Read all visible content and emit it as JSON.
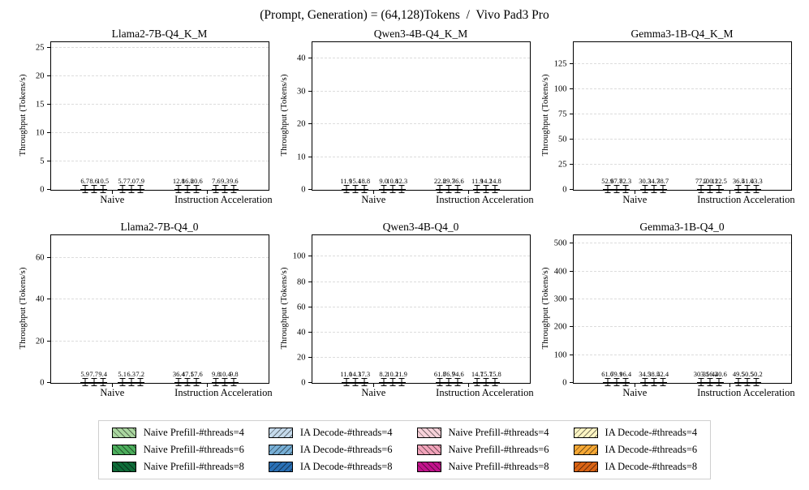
{
  "figure_title": "(Prompt, Generation) = (64,128)Tokens  /  Vivo Pad3 Pro",
  "palette": {
    "naive_prefill": [
      "#aad6a0",
      "#4cae5c",
      "#0e6b38"
    ],
    "naive_decode": [
      "#c5daec",
      "#77afd6",
      "#2a70b5"
    ],
    "ia_prefill": [
      "#f7d1d9",
      "#f2a3ba",
      "#c2138c"
    ],
    "ia_decode": [
      "#fdf5c3",
      "#f7a834",
      "#d96314"
    ]
  },
  "legend": {
    "columns": [
      {
        "palette": "naive_prefill",
        "kind": "prefill",
        "labels": [
          "Naive Prefill-#threads=4",
          "Naive Prefill-#threads=6",
          "Naive Prefill-#threads=8"
        ]
      },
      {
        "palette": "naive_decode",
        "kind": "decode",
        "labels": [
          "IA Decode-#threads=4",
          "IA Decode-#threads=6",
          "IA Decode-#threads=8"
        ]
      },
      {
        "palette": "ia_prefill",
        "kind": "prefill",
        "labels": [
          "Naive Prefill-#threads=4",
          "Naive Prefill-#threads=6",
          "Naive Prefill-#threads=8"
        ]
      },
      {
        "palette": "ia_decode",
        "kind": "decode",
        "labels": [
          "IA Decode-#threads=4",
          "IA Decode-#threads=6",
          "IA Decode-#threads=8"
        ]
      }
    ]
  },
  "chart_data": [
    {
      "type": "bar",
      "title": "Llama2-7B-Q4_K_M",
      "ylabel": "Throughput (Tokens/s)",
      "categories": [
        "Naive",
        "Instruction Acceleration"
      ],
      "yticks": [
        0,
        5,
        10,
        15,
        20,
        25
      ],
      "ymax": 26,
      "grid": true,
      "series": [
        {
          "name": "Naive Prefill",
          "category": "Naive",
          "kind": "prefill",
          "palette": "naive_prefill",
          "threads": [
            4,
            6,
            8
          ],
          "values": [
            6.7,
            8.6,
            10.5
          ]
        },
        {
          "name": "IA Decode",
          "category": "Naive",
          "kind": "decode",
          "palette": "naive_decode",
          "threads": [
            4,
            6,
            8
          ],
          "values": [
            5.7,
            7.0,
            7.9
          ]
        },
        {
          "name": "Naive Prefill",
          "category": "Instruction Acceleration",
          "kind": "prefill",
          "palette": "ia_prefill",
          "threads": [
            4,
            6,
            8
          ],
          "values": [
            12.8,
            16.8,
            20.6
          ]
        },
        {
          "name": "IA Decode",
          "category": "Instruction Acceleration",
          "kind": "decode",
          "palette": "ia_decode",
          "threads": [
            4,
            6,
            8
          ],
          "values": [
            7.6,
            9.3,
            9.6
          ]
        }
      ]
    },
    {
      "type": "bar",
      "title": "Qwen3-4B-Q4_K_M",
      "ylabel": "Throughput (Tokens/s)",
      "categories": [
        "Naive",
        "Instruction Acceleration"
      ],
      "yticks": [
        0,
        10,
        20,
        30,
        40
      ],
      "ymax": 45,
      "grid": true,
      "series": [
        {
          "name": "Naive Prefill",
          "category": "Naive",
          "kind": "prefill",
          "palette": "naive_prefill",
          "threads": [
            4,
            6,
            8
          ],
          "values": [
            11.9,
            15.4,
            18.8
          ]
        },
        {
          "name": "IA Decode",
          "category": "Naive",
          "kind": "decode",
          "palette": "naive_decode",
          "threads": [
            4,
            6,
            8
          ],
          "values": [
            9.0,
            10.8,
            12.3
          ]
        },
        {
          "name": "Naive Prefill",
          "category": "Instruction Acceleration",
          "kind": "prefill",
          "palette": "ia_prefill",
          "threads": [
            4,
            6,
            8
          ],
          "values": [
            22.8,
            29.7,
            36.6
          ]
        },
        {
          "name": "IA Decode",
          "category": "Instruction Acceleration",
          "kind": "decode",
          "palette": "ia_decode",
          "threads": [
            4,
            6,
            8
          ],
          "values": [
            11.9,
            14.2,
            14.8
          ]
        }
      ]
    },
    {
      "type": "bar",
      "title": "Gemma3-1B-Q4_K_M",
      "ylabel": "Throughput (Tokens/s)",
      "categories": [
        "Naive",
        "Instruction Acceleration"
      ],
      "yticks": [
        0,
        25,
        50,
        75,
        100,
        125
      ],
      "ymax": 147,
      "grid": true,
      "series": [
        {
          "name": "Naive Prefill",
          "category": "Naive",
          "kind": "prefill",
          "palette": "naive_prefill",
          "threads": [
            4,
            6,
            8
          ],
          "values": [
            52.9,
            67.7,
            82.3
          ]
        },
        {
          "name": "IA Decode",
          "category": "Naive",
          "kind": "decode",
          "palette": "naive_decode",
          "threads": [
            4,
            6,
            8
          ],
          "values": [
            30.3,
            34.7,
            38.7
          ]
        },
        {
          "name": "Naive Prefill",
          "category": "Instruction Acceleration",
          "kind": "prefill",
          "palette": "ia_prefill",
          "threads": [
            4,
            6,
            8
          ],
          "values": [
            77.2,
            100.1,
            122.5
          ]
        },
        {
          "name": "IA Decode",
          "category": "Instruction Acceleration",
          "kind": "decode",
          "palette": "ia_decode",
          "threads": [
            4,
            6,
            8
          ],
          "values": [
            36.5,
            41.0,
            43.3
          ]
        }
      ]
    },
    {
      "type": "bar",
      "title": "Llama2-7B-Q4_0",
      "ylabel": "Throughput (Tokens/s)",
      "categories": [
        "Naive",
        "Instruction Acceleration"
      ],
      "yticks": [
        0,
        20,
        40,
        60
      ],
      "ymax": 71,
      "grid": true,
      "series": [
        {
          "name": "Naive Prefill",
          "category": "Naive",
          "kind": "prefill",
          "palette": "naive_prefill",
          "threads": [
            4,
            6,
            8
          ],
          "values": [
            5.9,
            7.7,
            9.4
          ]
        },
        {
          "name": "IA Decode",
          "category": "Naive",
          "kind": "decode",
          "palette": "naive_decode",
          "threads": [
            4,
            6,
            8
          ],
          "values": [
            5.1,
            6.3,
            7.2
          ]
        },
        {
          "name": "Naive Prefill",
          "category": "Instruction Acceleration",
          "kind": "prefill",
          "palette": "ia_prefill",
          "threads": [
            4,
            6,
            8
          ],
          "values": [
            36.4,
            47.1,
            57.6
          ]
        },
        {
          "name": "IA Decode",
          "category": "Instruction Acceleration",
          "kind": "decode",
          "palette": "ia_decode",
          "threads": [
            4,
            6,
            8
          ],
          "values": [
            9.8,
            10.4,
            9.8
          ]
        }
      ]
    },
    {
      "type": "bar",
      "title": "Qwen3-4B-Q4_0",
      "ylabel": "Throughput (Tokens/s)",
      "categories": [
        "Naive",
        "Instruction Acceleration"
      ],
      "yticks": [
        0,
        20,
        40,
        60,
        80,
        100
      ],
      "ymax": 117,
      "grid": true,
      "series": [
        {
          "name": "Naive Prefill",
          "category": "Naive",
          "kind": "prefill",
          "palette": "naive_prefill",
          "threads": [
            4,
            6,
            8
          ],
          "values": [
            11.0,
            14.3,
            17.3
          ]
        },
        {
          "name": "IA Decode",
          "category": "Naive",
          "kind": "decode",
          "palette": "naive_decode",
          "threads": [
            4,
            6,
            8
          ],
          "values": [
            8.2,
            10.2,
            11.9
          ]
        },
        {
          "name": "Naive Prefill",
          "category": "Instruction Acceleration",
          "kind": "prefill",
          "palette": "ia_prefill",
          "threads": [
            4,
            6,
            8
          ],
          "values": [
            61.8,
            76.7,
            94.6
          ]
        },
        {
          "name": "IA Decode",
          "category": "Instruction Acceleration",
          "kind": "decode",
          "palette": "ia_decode",
          "threads": [
            4,
            6,
            8
          ],
          "values": [
            14.7,
            15.7,
            15.8
          ]
        }
      ]
    },
    {
      "type": "bar",
      "title": "Gemma3-1B-Q4_0",
      "ylabel": "Throughput (Tokens/s)",
      "categories": [
        "Naive",
        "Instruction Acceleration"
      ],
      "yticks": [
        0,
        100,
        200,
        300,
        400,
        500
      ],
      "ymax": 530,
      "grid": true,
      "series": [
        {
          "name": "Naive Prefill",
          "category": "Naive",
          "kind": "prefill",
          "palette": "naive_prefill",
          "threads": [
            4,
            6,
            8
          ],
          "values": [
            61.6,
            79.1,
            96.4
          ]
        },
        {
          "name": "IA Decode",
          "category": "Naive",
          "kind": "decode",
          "palette": "naive_decode",
          "threads": [
            4,
            6,
            8
          ],
          "values": [
            34.5,
            38.5,
            42.4
          ]
        },
        {
          "name": "Naive Prefill",
          "category": "Instruction Acceleration",
          "kind": "prefill",
          "palette": "ia_prefill",
          "threads": [
            4,
            6,
            8
          ],
          "values": [
            303.1,
            356.2,
            440.6
          ]
        },
        {
          "name": "IA Decode",
          "category": "Instruction Acceleration",
          "kind": "decode",
          "palette": "ia_decode",
          "threads": [
            4,
            6,
            8
          ],
          "values": [
            49.5,
            50.5,
            50.2
          ]
        }
      ]
    }
  ]
}
